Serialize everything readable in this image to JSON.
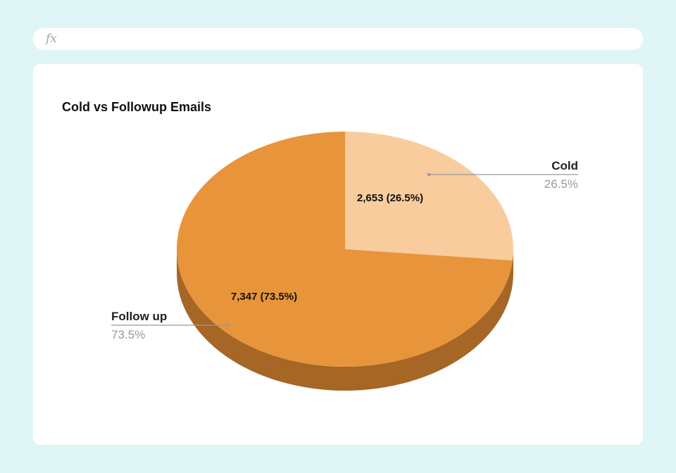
{
  "formula_bar": {
    "icon": "fx-icon",
    "label": "fx",
    "value": ""
  },
  "chart_data": {
    "type": "pie",
    "style": "3d",
    "title": "Cold vs Followup Emails",
    "slices": [
      {
        "label": "Cold",
        "value": 2653,
        "percent": 26.5,
        "value_label": "2,653 (26.5%)",
        "percent_label": "26.5%",
        "color": "#f9cc9e"
      },
      {
        "label": "Follow up",
        "value": 7347,
        "percent": 73.5,
        "value_label": "7,347 (73.5%)",
        "percent_label": "73.5%",
        "color": "#e8943a"
      }
    ],
    "side_color": "#a56626",
    "legend": "callout labels"
  },
  "colors": {
    "background": "#e0f5f5",
    "card": "#ffffff",
    "leader_line": "#999999",
    "label_text": "#222222",
    "percent_text": "#9a9a9a"
  }
}
